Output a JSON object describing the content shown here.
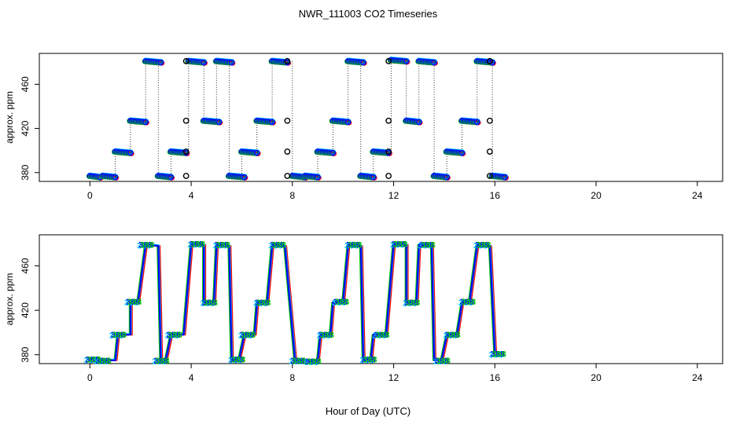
{
  "chart_data": {
    "title": "NWR_111003  CO2 Timeseries",
    "xlabel": "Hour of Day (UTC)",
    "panels": [
      {
        "id": "top",
        "type": "scatter",
        "ylabel": "approx. ppm",
        "xlim": [
          -2,
          25
        ],
        "ylim": [
          372,
          488
        ],
        "xticks": [
          0,
          4,
          8,
          12,
          16,
          20,
          24
        ],
        "xtick_labels": [
          "0",
          "4",
          "8",
          "12",
          "16",
          "20",
          "24"
        ],
        "yticks": [
          380,
          420,
          460
        ],
        "ytick_labels": [
          "380",
          "420",
          "460"
        ],
        "plateaus": [
          {
            "x0": 0.0,
            "x1": 0.4,
            "y": 377
          },
          {
            "x0": 0.5,
            "x1": 1.0,
            "y": 377
          },
          {
            "x0": 1.0,
            "x1": 1.6,
            "y": 399
          },
          {
            "x0": 1.6,
            "x1": 2.2,
            "y": 427
          },
          {
            "x0": 2.2,
            "x1": 2.8,
            "y": 481
          },
          {
            "x0": 2.7,
            "x1": 3.2,
            "y": 377
          },
          {
            "x0": 3.2,
            "x1": 3.8,
            "y": 399
          },
          {
            "x0": 3.9,
            "x1": 4.5,
            "y": 481
          },
          {
            "x0": 4.5,
            "x1": 5.1,
            "y": 427
          },
          {
            "x0": 5.0,
            "x1": 5.6,
            "y": 481
          },
          {
            "x0": 5.5,
            "x1": 6.1,
            "y": 377
          },
          {
            "x0": 6.0,
            "x1": 6.6,
            "y": 399
          },
          {
            "x0": 6.6,
            "x1": 7.2,
            "y": 427
          },
          {
            "x0": 7.2,
            "x1": 7.8,
            "y": 481
          },
          {
            "x0": 8.0,
            "x1": 8.5,
            "y": 377
          },
          {
            "x0": 8.5,
            "x1": 9.0,
            "y": 377
          },
          {
            "x0": 9.0,
            "x1": 9.6,
            "y": 399
          },
          {
            "x0": 9.6,
            "x1": 10.2,
            "y": 427
          },
          {
            "x0": 10.2,
            "x1": 10.8,
            "y": 481
          },
          {
            "x0": 10.7,
            "x1": 11.2,
            "y": 377
          },
          {
            "x0": 11.2,
            "x1": 11.8,
            "y": 399
          },
          {
            "x0": 11.9,
            "x1": 12.5,
            "y": 482
          },
          {
            "x0": 12.5,
            "x1": 13.0,
            "y": 427
          },
          {
            "x0": 13.0,
            "x1": 13.6,
            "y": 481
          },
          {
            "x0": 13.6,
            "x1": 14.1,
            "y": 377
          },
          {
            "x0": 14.1,
            "x1": 14.7,
            "y": 399
          },
          {
            "x0": 14.7,
            "x1": 15.3,
            "y": 427
          },
          {
            "x0": 15.3,
            "x1": 15.9,
            "y": 481
          },
          {
            "x0": 15.9,
            "x1": 16.4,
            "y": 377
          }
        ],
        "black_markers": [
          {
            "x": 3.8,
            "y": 377
          },
          {
            "x": 3.8,
            "y": 399
          },
          {
            "x": 3.8,
            "y": 427
          },
          {
            "x": 3.8,
            "y": 481
          },
          {
            "x": 7.8,
            "y": 481
          },
          {
            "x": 7.8,
            "y": 427
          },
          {
            "x": 7.8,
            "y": 399
          },
          {
            "x": 7.8,
            "y": 377
          },
          {
            "x": 11.8,
            "y": 377
          },
          {
            "x": 11.8,
            "y": 399
          },
          {
            "x": 11.8,
            "y": 427
          },
          {
            "x": 11.8,
            "y": 481
          },
          {
            "x": 15.8,
            "y": 481
          },
          {
            "x": 15.8,
            "y": 427
          },
          {
            "x": 15.8,
            "y": 399
          },
          {
            "x": 15.8,
            "y": 377
          }
        ]
      },
      {
        "id": "bottom",
        "type": "line",
        "ylabel": "approx. ppm",
        "xlim": [
          -2,
          25
        ],
        "ylim": [
          372,
          488
        ],
        "xticks": [
          0,
          4,
          8,
          12,
          16,
          20,
          24
        ],
        "xtick_labels": [
          "0",
          "4",
          "8",
          "12",
          "16",
          "20",
          "24"
        ],
        "yticks": [
          380,
          420,
          460
        ],
        "ytick_labels": [
          "380",
          "420",
          "460"
        ],
        "point_label": "388",
        "path": [
          [
            0.0,
            376
          ],
          [
            0.4,
            376
          ],
          [
            0.5,
            375
          ],
          [
            1.0,
            375
          ],
          [
            1.1,
            398
          ],
          [
            1.6,
            398
          ],
          [
            1.6,
            427
          ],
          [
            1.9,
            428
          ],
          [
            2.2,
            479
          ],
          [
            2.7,
            478
          ],
          [
            2.8,
            375
          ],
          [
            3.0,
            376
          ],
          [
            3.2,
            398
          ],
          [
            3.7,
            398
          ],
          [
            4.0,
            480
          ],
          [
            4.5,
            479
          ],
          [
            4.5,
            427
          ],
          [
            4.9,
            428
          ],
          [
            5.0,
            479
          ],
          [
            5.5,
            478
          ],
          [
            5.6,
            375
          ],
          [
            5.9,
            377
          ],
          [
            6.1,
            398
          ],
          [
            6.5,
            398
          ],
          [
            6.6,
            427
          ],
          [
            7.0,
            428
          ],
          [
            7.2,
            479
          ],
          [
            7.7,
            478
          ],
          [
            8.1,
            375
          ],
          [
            8.5,
            375
          ],
          [
            8.6,
            374
          ],
          [
            9.0,
            375
          ],
          [
            9.1,
            398
          ],
          [
            9.5,
            398
          ],
          [
            9.6,
            427
          ],
          [
            10.0,
            428
          ],
          [
            10.2,
            479
          ],
          [
            10.7,
            478
          ],
          [
            10.8,
            375
          ],
          [
            11.1,
            376
          ],
          [
            11.2,
            398
          ],
          [
            11.7,
            398
          ],
          [
            12.0,
            480
          ],
          [
            12.5,
            479
          ],
          [
            12.5,
            427
          ],
          [
            12.9,
            428
          ],
          [
            13.0,
            479
          ],
          [
            13.5,
            478
          ],
          [
            13.6,
            375
          ],
          [
            13.9,
            376
          ],
          [
            14.1,
            398
          ],
          [
            14.5,
            398
          ],
          [
            14.7,
            427
          ],
          [
            15.0,
            428
          ],
          [
            15.3,
            479
          ],
          [
            15.8,
            478
          ],
          [
            16.0,
            381
          ]
        ],
        "labeled_points": [
          [
            0.1,
            376
          ],
          [
            0.5,
            375
          ],
          [
            1.1,
            398
          ],
          [
            1.7,
            428
          ],
          [
            2.2,
            479
          ],
          [
            2.8,
            375
          ],
          [
            3.3,
            398
          ],
          [
            4.2,
            480
          ],
          [
            4.7,
            427
          ],
          [
            5.2,
            479
          ],
          [
            5.8,
            376
          ],
          [
            6.2,
            398
          ],
          [
            6.8,
            427
          ],
          [
            7.4,
            479
          ],
          [
            8.2,
            375
          ],
          [
            8.8,
            374
          ],
          [
            9.3,
            398
          ],
          [
            9.9,
            428
          ],
          [
            10.4,
            479
          ],
          [
            11.0,
            376
          ],
          [
            11.5,
            398
          ],
          [
            12.2,
            480
          ],
          [
            12.7,
            427
          ],
          [
            13.3,
            479
          ],
          [
            13.9,
            375
          ],
          [
            14.3,
            398
          ],
          [
            14.9,
            428
          ],
          [
            15.5,
            479
          ],
          [
            16.1,
            381
          ]
        ]
      }
    ]
  },
  "colors": {
    "series": [
      "#0000ff",
      "#ff0000",
      "#00cc00",
      "#00ccff"
    ],
    "marker_edge": "#000000",
    "axis": "#000000",
    "background": "#ffffff"
  }
}
